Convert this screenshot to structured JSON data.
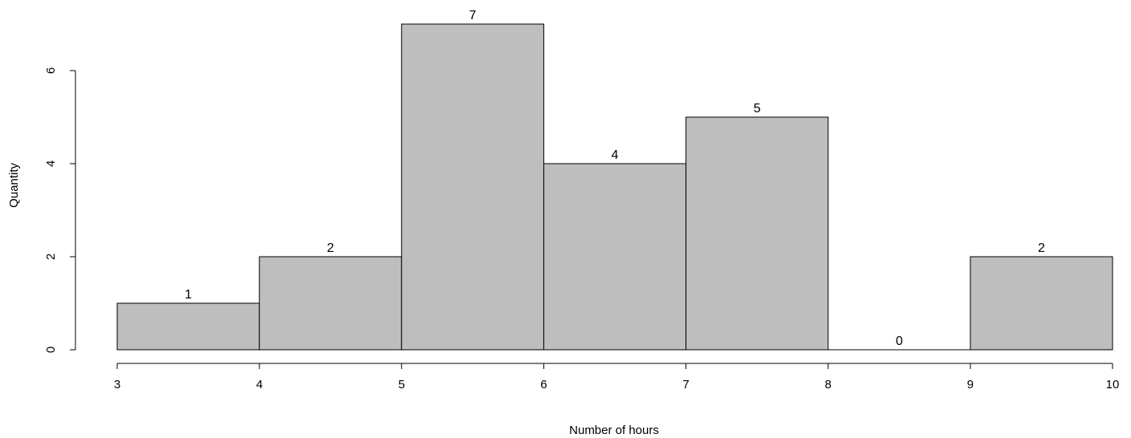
{
  "chart_data": {
    "type": "bar",
    "title": "",
    "xlabel": "Number of hours",
    "ylabel": "Quantity",
    "bins": [
      {
        "from": 3,
        "to": 4,
        "count": 1
      },
      {
        "from": 4,
        "to": 5,
        "count": 2
      },
      {
        "from": 5,
        "to": 6,
        "count": 7
      },
      {
        "from": 6,
        "to": 7,
        "count": 4
      },
      {
        "from": 7,
        "to": 8,
        "count": 5
      },
      {
        "from": 8,
        "to": 9,
        "count": 0
      },
      {
        "from": 9,
        "to": 10,
        "count": 2
      }
    ],
    "data_labels": [
      "1",
      "2",
      "7",
      "4",
      "5",
      "0",
      "2"
    ],
    "x_ticks": [
      "3",
      "4",
      "5",
      "6",
      "7",
      "8",
      "9",
      "10"
    ],
    "y_ticks": [
      "0",
      "2",
      "4",
      "6"
    ],
    "xlim": [
      3,
      10
    ],
    "ylim": [
      0,
      7
    ],
    "bar_color": "#bebebe",
    "grid": false,
    "legend": "none"
  }
}
